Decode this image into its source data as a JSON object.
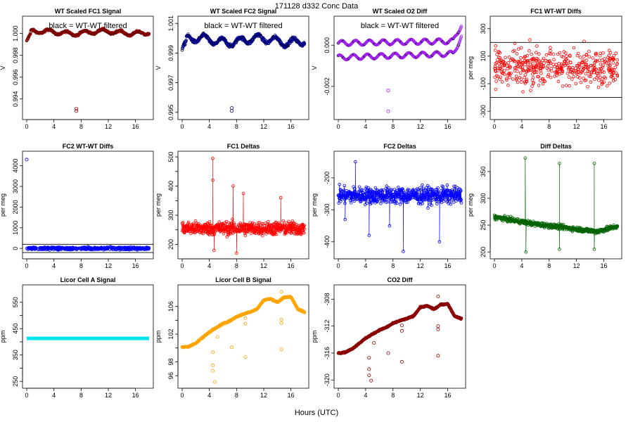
{
  "figure": {
    "title": "171128   d332   Conc Data",
    "xlabel": "Hours (UTC)"
  },
  "chart_data": [
    {
      "id": "p1",
      "type": "scatter",
      "title": "WT Scaled FC1 Signal",
      "annotation": "black = WT-WT filtered",
      "ylabel": "V",
      "xlim": [
        0,
        18
      ],
      "ylim": [
        0.9925,
        1.0012
      ],
      "xticks": [
        0,
        4,
        8,
        12,
        16
      ],
      "yticks": [
        0.994,
        0.996,
        0.998,
        1.0
      ],
      "yticklabels": [
        "0.994",
        "0.996",
        "0.998",
        "1.000"
      ],
      "color": "#8b0000",
      "trend": "band",
      "band_center": 1.0001,
      "band_amp": 0.00018,
      "start_value": 0.9993,
      "outliers": [
        [
          7.3,
          0.9929
        ],
        [
          7.3,
          0.9931
        ]
      ],
      "outlier_color": "#8b0000"
    },
    {
      "id": "p2",
      "type": "scatter",
      "title": "WT Scaled FC2 Signal",
      "annotation": "black = WT-WT filtered",
      "ylabel": "V",
      "xlim": [
        0,
        18
      ],
      "ylim": [
        0.9948,
        1.0012
      ],
      "xticks": [
        0,
        4,
        8,
        12,
        16
      ],
      "yticks": [
        0.995,
        0.997,
        0.999,
        1.001
      ],
      "yticklabels": [
        "0.995",
        "0.997",
        "0.999",
        "1.001"
      ],
      "color": "#00008b",
      "trend": "band",
      "band_center": 0.99985,
      "band_amp": 0.00025,
      "start_value": 0.9993,
      "outliers": [
        [
          7.3,
          0.9951
        ],
        [
          7.3,
          0.9953
        ]
      ],
      "outlier_color": "#00008b"
    },
    {
      "id": "p3",
      "type": "scatter",
      "title": "WT Scaled O2 Diff",
      "annotation": "black = WT-WT filtered",
      "ylabel": "V",
      "xlim": [
        0,
        18
      ],
      "ylim": [
        -0.0034,
        0.0012
      ],
      "xticks": [
        0,
        4,
        8,
        12,
        16
      ],
      "yticks": [
        -0.002,
        0.0
      ],
      "yticklabels": [
        "-0.002",
        "0.000"
      ],
      "ytick_labels_small": [
        "0.000"
      ],
      "color": "#a020f0",
      "trend": "twin_sine",
      "series": [
        {
          "name": "upper",
          "start": 0.0001,
          "end": 0.0002,
          "rise_to": 0.0011
        },
        {
          "name": "lower",
          "start": -0.0006,
          "end": -0.0004,
          "rise_to": 0.0005
        }
      ],
      "outliers": [
        [
          7.3,
          -0.0022
        ],
        [
          7.3,
          -0.0032
        ]
      ],
      "outlier_color": "#a020f0"
    },
    {
      "id": "p4",
      "type": "scatter",
      "title": "FC1 WT-WT Diffs",
      "ylabel": "per meg",
      "xlim": [
        0,
        18
      ],
      "ylim": [
        -330,
        360
      ],
      "xticks": [
        0,
        4,
        8,
        12,
        16
      ],
      "yticks": [
        -300,
        -100,
        100,
        300
      ],
      "yticklabels": [
        "-300",
        "-100",
        "100",
        "300"
      ],
      "color": "#ff0000",
      "trend": "cloud",
      "center": 20,
      "spread": 130,
      "hlines": [
        200,
        -200
      ]
    },
    {
      "id": "p5",
      "type": "scatter",
      "title": "FC2 WT-WT Diffs",
      "ylabel": "per meg",
      "xlim": [
        0,
        18
      ],
      "ylim": [
        -300,
        4500
      ],
      "xticks": [
        0,
        4,
        8,
        12,
        16
      ],
      "yticks": [
        0,
        1000,
        2000,
        3000,
        4000
      ],
      "yticklabels": [
        "0",
        "1000",
        "2000",
        "3000",
        "4000"
      ],
      "color": "#0000ff",
      "trend": "cloud",
      "center": 0,
      "spread": 60,
      "hlines": [
        200,
        -200
      ],
      "outliers": [
        [
          0,
          4300
        ]
      ],
      "outlier_color": "#0000ff"
    },
    {
      "id": "p6",
      "type": "line",
      "title": "FC1 Deltas",
      "ylabel": "per meg",
      "xlim": [
        0,
        18
      ],
      "ylim": [
        165,
        505
      ],
      "xticks": [
        0,
        4,
        8,
        12,
        16
      ],
      "yticks": [
        200,
        250,
        300,
        350,
        400,
        450,
        500
      ],
      "yticklabels": [
        "200",
        "",
        "300",
        "",
        "400",
        "",
        "500"
      ],
      "color": "#ff0000",
      "trend": "noisy",
      "center": 255,
      "spread": 22,
      "spikes": [
        [
          4.5,
          495
        ],
        [
          4.5,
          420
        ],
        [
          7.5,
          400
        ],
        [
          9.0,
          375
        ],
        [
          14.5,
          360
        ],
        [
          4.7,
          180
        ],
        [
          8.0,
          170
        ]
      ]
    },
    {
      "id": "p7",
      "type": "line",
      "title": "FC2 Deltas",
      "ylabel": "per meg",
      "xlim": [
        0,
        18
      ],
      "ylim": [
        -440,
        -130
      ],
      "xticks": [
        0,
        4,
        8,
        12,
        16
      ],
      "yticks": [
        -400,
        -300,
        -200
      ],
      "yticklabels": [
        "-400",
        "-300",
        "-200"
      ],
      "color": "#0000ff",
      "trend": "noisy",
      "center": -255,
      "spread": 25,
      "spikes": [
        [
          2.5,
          -150
        ],
        [
          4.5,
          -380
        ],
        [
          9.5,
          -430
        ],
        [
          14.8,
          -400
        ],
        [
          7.5,
          -350
        ],
        [
          1.0,
          -330
        ]
      ]
    },
    {
      "id": "p8",
      "type": "line",
      "title": "Diff Deltas",
      "ylabel": "per meg",
      "xlim": [
        0,
        18
      ],
      "ylim": [
        195,
        380
      ],
      "xticks": [
        0,
        4,
        8,
        12,
        16
      ],
      "yticks": [
        200,
        250,
        300,
        350
      ],
      "yticklabels": [
        "200",
        "250",
        "300",
        "350"
      ],
      "color": "#006400",
      "trend": "decline",
      "start_value": 265,
      "end_value": 248,
      "min_value": 238,
      "spikes": [
        [
          4.5,
          375
        ],
        [
          4.6,
          200
        ],
        [
          9.5,
          365
        ],
        [
          9.5,
          205
        ],
        [
          14.6,
          365
        ],
        [
          14.6,
          205
        ]
      ]
    },
    {
      "id": "p9",
      "type": "scatter",
      "title": "Licor Cell A Signal",
      "ylabel": "ppm",
      "xlim": [
        0,
        18
      ],
      "ylim": [
        240,
        600
      ],
      "xticks": [
        0,
        4,
        8,
        12,
        16
      ],
      "yticks": [
        250,
        300,
        350,
        400,
        450,
        500,
        550
      ],
      "yticklabels": [
        "250",
        "",
        "350",
        "",
        "450",
        "",
        "550"
      ],
      "color": "#00e5ee",
      "trend": "flat",
      "value": 413
    },
    {
      "id": "p10",
      "type": "scatter",
      "title": "Licor Cell B Signal",
      "ylabel": "ppm",
      "xlim": [
        0,
        18
      ],
      "ylim": [
        94.8,
        108.5
      ],
      "xticks": [
        0,
        4,
        8,
        12,
        16
      ],
      "yticks": [
        96,
        98,
        100,
        102,
        104,
        106
      ],
      "yticklabels": [
        "96",
        "98",
        "102",
        "106"
      ],
      "ytick_label_values": [
        96,
        98,
        102,
        106
      ],
      "color": "#ffa500",
      "trend": "rise",
      "profile": [
        [
          0,
          100.1
        ],
        [
          1,
          100.2
        ],
        [
          2,
          100.7
        ],
        [
          3,
          101.5
        ],
        [
          4,
          102.3
        ],
        [
          5,
          102.9
        ],
        [
          6,
          103.5
        ],
        [
          7,
          103.9
        ],
        [
          8,
          104.5
        ],
        [
          9,
          104.9
        ],
        [
          10,
          105.2
        ],
        [
          11,
          105.6
        ],
        [
          12,
          106.9
        ],
        [
          13,
          107.1
        ],
        [
          14,
          106.6
        ],
        [
          15,
          107.3
        ],
        [
          16,
          107.4
        ],
        [
          17,
          105.6
        ],
        [
          18,
          105.2
        ]
      ],
      "outliers": [
        [
          4.5,
          96.7
        ],
        [
          4.5,
          97.5
        ],
        [
          4.8,
          95.1
        ],
        [
          4.5,
          99.4
        ],
        [
          5.2,
          101.6
        ],
        [
          7.3,
          100.1
        ],
        [
          9.3,
          98.7
        ],
        [
          9.3,
          103.5
        ],
        [
          9.3,
          104.3
        ],
        [
          14.6,
          108.1
        ],
        [
          14.6,
          99.8
        ],
        [
          14.6,
          103.6
        ],
        [
          14.6,
          104.1
        ]
      ],
      "outlier_color": "#ffa500"
    },
    {
      "id": "p11",
      "type": "scatter",
      "title": "CO2 Diff",
      "ylabel": "ppm",
      "xlim": [
        0,
        18
      ],
      "ylim": [
        -320.6,
        -306.5
      ],
      "xticks": [
        0,
        4,
        8,
        12,
        16
      ],
      "yticks": [
        -320,
        -316,
        -312,
        -308
      ],
      "yticklabels": [
        "-320",
        "-316",
        "-312",
        "-308"
      ],
      "color": "#8b0000",
      "trend": "rise",
      "profile": [
        [
          0,
          -316.0
        ],
        [
          1,
          -315.9
        ],
        [
          2,
          -315.4
        ],
        [
          3,
          -314.6
        ],
        [
          4,
          -313.8
        ],
        [
          5,
          -313.2
        ],
        [
          6,
          -312.6
        ],
        [
          7,
          -312.2
        ],
        [
          8,
          -311.6
        ],
        [
          9,
          -311.2
        ],
        [
          10,
          -310.9
        ],
        [
          11,
          -310.5
        ],
        [
          12,
          -309.2
        ],
        [
          13,
          -309.0
        ],
        [
          14,
          -309.5
        ],
        [
          15,
          -308.8
        ],
        [
          16,
          -308.7
        ],
        [
          17,
          -310.5
        ],
        [
          18,
          -310.9
        ]
      ],
      "outliers": [
        [
          4.5,
          -319.3
        ],
        [
          4.8,
          -320.1
        ],
        [
          4.5,
          -318.4
        ],
        [
          4.5,
          -316.7
        ],
        [
          5.2,
          -314.5
        ],
        [
          7.3,
          -316.0
        ],
        [
          9.3,
          -317.3
        ],
        [
          9.3,
          -312.7
        ],
        [
          9.3,
          -311.9
        ],
        [
          14.6,
          -307.6
        ],
        [
          14.6,
          -316.4
        ],
        [
          14.6,
          -312.5
        ],
        [
          14.6,
          -312.0
        ]
      ],
      "outlier_color": "#8b0000"
    }
  ]
}
